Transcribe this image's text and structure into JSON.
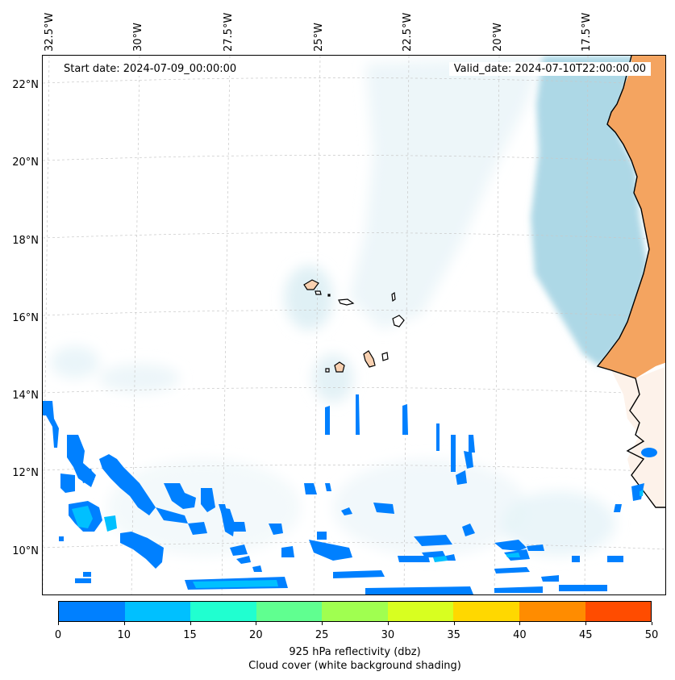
{
  "map": {
    "start_date": "Start date: 2024-07-09_00:00:00",
    "valid_date": "Valid_date: 2024-07-10T22:00:00.00",
    "lon_labels": [
      "32.5°W",
      "30°W",
      "27.5°W",
      "25°W",
      "22.5°W",
      "20°W",
      "17.5°W"
    ],
    "lat_labels": [
      "22°N",
      "20°N",
      "18°N",
      "16°N",
      "14°N",
      "12°N",
      "10°N"
    ]
  },
  "colorbar": {
    "ticks": [
      "0",
      "10",
      "15",
      "20",
      "25",
      "30",
      "35",
      "40",
      "45",
      "50"
    ],
    "colors": [
      "#0080ff",
      "#00c0ff",
      "#20ffd0",
      "#60ff90",
      "#a0ff50",
      "#d8ff20",
      "#ffd800",
      "#ff8c00",
      "#ff4c00"
    ],
    "label_line1": "925 hPa reflectivity (dbz)",
    "label_line2": "Cloud cover (white background shading)"
  },
  "colors": {
    "land": "#f4a460",
    "land_light": "#f8d0b0",
    "cloud": "#add8e6",
    "reflectivity_low": "#0080ff",
    "reflectivity_mid": "#00c0ff"
  }
}
